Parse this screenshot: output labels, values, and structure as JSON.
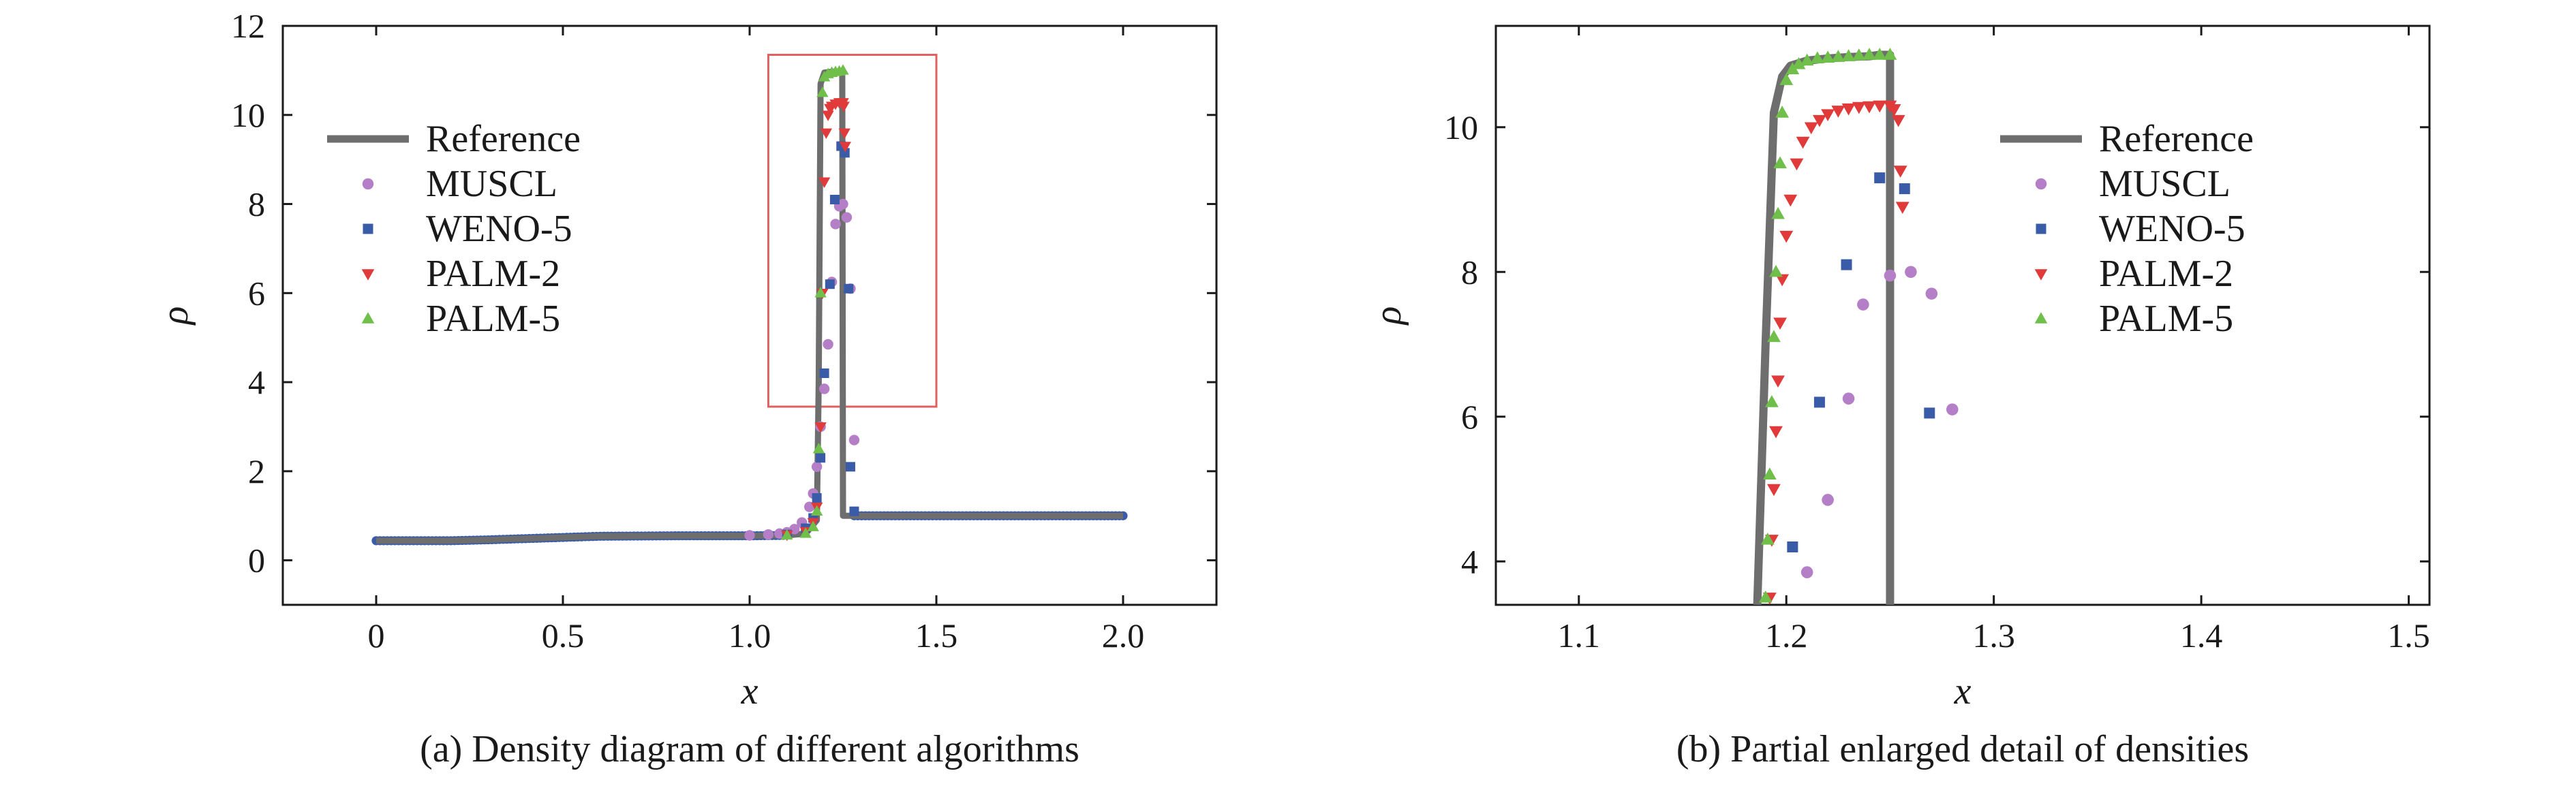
{
  "chart_data": [
    {
      "type": "scatter",
      "caption": "(a) Density diagram of different algorithms",
      "xlabel": "x",
      "ylabel": "ρ",
      "xlim": [
        -0.25,
        2.25
      ],
      "ylim": [
        -1,
        12
      ],
      "xticks": [
        0,
        0.5,
        1.0,
        1.5,
        2.0
      ],
      "xtick_labels": [
        "0",
        "0.5",
        "1.0",
        "1.5",
        "2.0"
      ],
      "yticks": [
        0,
        2,
        4,
        6,
        8,
        10,
        12
      ],
      "ytick_labels": [
        "0",
        "2",
        "4",
        "6",
        "8",
        "10",
        "12"
      ],
      "grid": false,
      "legend_position": "upper-left",
      "zoom_box": {
        "x": [
          1.05,
          1.5
        ],
        "y": [
          3.45,
          11.35
        ],
        "color": "#e06060"
      },
      "series": [
        {
          "name": "Reference",
          "style": "line",
          "color": "#6e6e6e",
          "x": [
            0,
            0.2,
            0.3,
            0.45,
            0.6,
            0.8,
            1.0,
            1.1,
            1.15,
            1.18,
            1.185,
            1.19,
            1.2,
            1.22,
            1.24,
            1.245,
            1.248,
            1.25,
            1.252,
            1.255,
            1.3,
            1.6,
            2.0
          ],
          "y": [
            0.44,
            0.44,
            0.46,
            0.5,
            0.54,
            0.55,
            0.55,
            0.56,
            0.6,
            0.9,
            4.0,
            10.7,
            10.95,
            10.97,
            10.98,
            10.99,
            11.0,
            1.0,
            1.0,
            1.0,
            1.0,
            1.0,
            1.0
          ]
        },
        {
          "name": "MUSCL",
          "style": "marker",
          "marker": "circle",
          "color": "#b57fc8",
          "x": [
            1.0,
            1.05,
            1.08,
            1.1,
            1.12,
            1.14,
            1.16,
            1.17,
            1.18,
            1.19,
            1.2,
            1.21,
            1.22,
            1.23,
            1.24,
            1.25,
            1.26,
            1.27,
            1.28
          ],
          "y": [
            0.56,
            0.58,
            0.6,
            0.63,
            0.7,
            0.85,
            1.2,
            1.5,
            2.1,
            3.0,
            3.85,
            4.85,
            6.25,
            7.55,
            7.95,
            8.0,
            7.7,
            6.1,
            2.7
          ]
        },
        {
          "name": "WENO-5",
          "style": "marker",
          "marker": "square",
          "color": "#3a5ca8",
          "x": [
            1.1,
            1.15,
            1.17,
            1.18,
            1.19,
            1.2,
            1.215,
            1.228,
            1.245,
            1.255,
            1.265,
            1.27,
            1.28
          ],
          "y": [
            0.58,
            0.72,
            0.95,
            1.4,
            2.3,
            4.2,
            6.2,
            8.1,
            9.3,
            9.15,
            6.1,
            2.1,
            1.1
          ]
        },
        {
          "name": "PALM-2",
          "style": "marker",
          "marker": "triangle-down",
          "color": "#e03a3a",
          "x": [
            1.1,
            1.15,
            1.17,
            1.18,
            1.19,
            1.195,
            1.2,
            1.205,
            1.21,
            1.215,
            1.22,
            1.23,
            1.24,
            1.25,
            1.252,
            1.254,
            1.256
          ],
          "y": [
            0.57,
            0.65,
            0.85,
            1.2,
            3.0,
            6.0,
            8.5,
            9.6,
            10.0,
            10.15,
            10.2,
            10.25,
            10.28,
            10.28,
            10.2,
            9.6,
            9.3
          ]
        },
        {
          "name": "PALM-5",
          "style": "marker",
          "marker": "triangle-up",
          "color": "#6fbf4a",
          "x": [
            1.1,
            1.15,
            1.17,
            1.18,
            1.185,
            1.19,
            1.195,
            1.2,
            1.21,
            1.22,
            1.23,
            1.24,
            1.25
          ],
          "y": [
            0.56,
            0.6,
            0.75,
            1.1,
            2.5,
            6.0,
            10.5,
            10.85,
            10.92,
            10.95,
            10.97,
            10.98,
            11.0
          ]
        }
      ]
    },
    {
      "type": "scatter",
      "caption": "(b) Partial enlarged detail of densities",
      "xlabel": "x",
      "ylabel": "ρ",
      "xlim": [
        1.06,
        1.51
      ],
      "ylim": [
        3.4,
        11.4
      ],
      "xticks": [
        1.1,
        1.2,
        1.3,
        1.4,
        1.5
      ],
      "xtick_labels": [
        "1.1",
        "1.2",
        "1.3",
        "1.4",
        "1.5"
      ],
      "yticks": [
        4,
        6,
        8,
        10
      ],
      "ytick_labels": [
        "4",
        "6",
        "8",
        "10"
      ],
      "grid": false,
      "legend_position": "upper-right",
      "series": [
        {
          "name": "Reference",
          "style": "line",
          "color": "#6e6e6e",
          "x": [
            1.186,
            1.19,
            1.194,
            1.198,
            1.202,
            1.21,
            1.22,
            1.23,
            1.24,
            1.245,
            1.248,
            1.25,
            1.25
          ],
          "y": [
            3.4,
            7.0,
            10.2,
            10.7,
            10.85,
            10.92,
            10.95,
            10.97,
            10.98,
            11.0,
            11.0,
            11.0,
            3.4
          ]
        },
        {
          "name": "MUSCL",
          "style": "marker",
          "marker": "circle",
          "color": "#b57fc8",
          "x": [
            1.21,
            1.22,
            1.23,
            1.237,
            1.25,
            1.26,
            1.27,
            1.28
          ],
          "y": [
            3.85,
            4.85,
            6.25,
            7.55,
            7.95,
            8.0,
            7.7,
            6.1
          ]
        },
        {
          "name": "WENO-5",
          "style": "marker",
          "marker": "square",
          "color": "#3a5ca8",
          "x": [
            1.203,
            1.216,
            1.229,
            1.245,
            1.257,
            1.269
          ],
          "y": [
            4.2,
            6.2,
            8.1,
            9.3,
            9.15,
            6.05
          ]
        },
        {
          "name": "PALM-2",
          "style": "marker",
          "marker": "triangle-down",
          "color": "#e03a3a",
          "x": [
            1.192,
            1.193,
            1.194,
            1.195,
            1.196,
            1.197,
            1.198,
            1.2,
            1.202,
            1.205,
            1.208,
            1.212,
            1.216,
            1.22,
            1.225,
            1.23,
            1.235,
            1.24,
            1.245,
            1.25,
            1.252,
            1.254,
            1.255,
            1.256
          ],
          "y": [
            3.5,
            4.3,
            5.0,
            5.8,
            6.5,
            7.3,
            7.9,
            8.5,
            9.0,
            9.5,
            9.8,
            10.0,
            10.1,
            10.18,
            10.23,
            10.26,
            10.28,
            10.29,
            10.3,
            10.3,
            10.25,
            10.1,
            9.4,
            8.9
          ]
        },
        {
          "name": "PALM-5",
          "style": "marker",
          "marker": "triangle-up",
          "color": "#6fbf4a",
          "x": [
            1.19,
            1.191,
            1.192,
            1.193,
            1.194,
            1.195,
            1.196,
            1.197,
            1.198,
            1.2,
            1.203,
            1.206,
            1.21,
            1.215,
            1.22,
            1.225,
            1.23,
            1.235,
            1.24,
            1.245,
            1.25
          ],
          "y": [
            3.5,
            4.3,
            5.2,
            6.2,
            7.1,
            8.0,
            8.8,
            9.5,
            10.2,
            10.65,
            10.8,
            10.87,
            10.92,
            10.95,
            10.96,
            10.97,
            10.98,
            10.99,
            11.0,
            11.0,
            11.0
          ]
        }
      ]
    }
  ]
}
